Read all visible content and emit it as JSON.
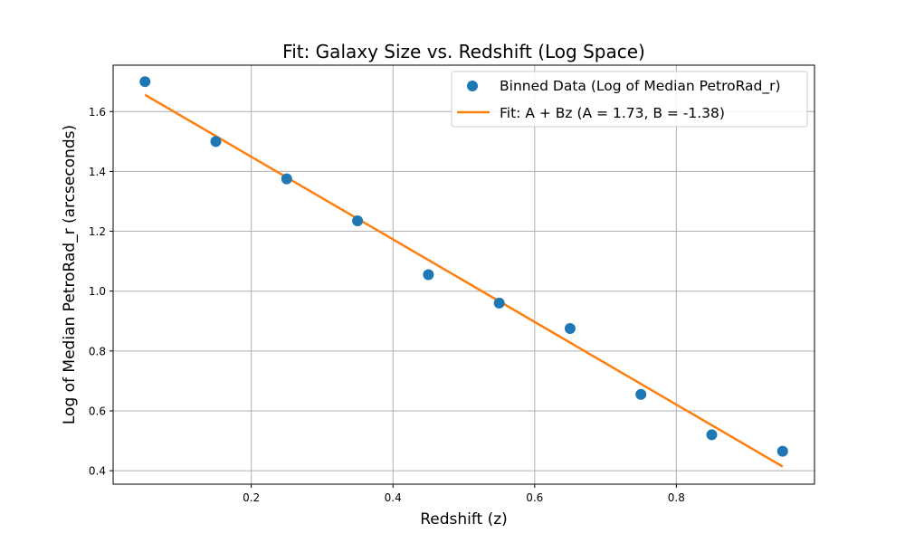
{
  "chart_data": {
    "type": "scatter",
    "title": "Fit: Galaxy Size vs. Redshift (Log Space)",
    "xlabel": "Redshift (z)",
    "ylabel": "Log of Median PetroRad_r (arcseconds)",
    "xlim": [
      0.005,
      0.995
    ],
    "ylim": [
      0.355,
      1.755
    ],
    "xticks": [
      0.2,
      0.4,
      0.6,
      0.8
    ],
    "xtick_labels": [
      "0.2",
      "0.4",
      "0.6",
      "0.8"
    ],
    "yticks": [
      0.4,
      0.6,
      0.8,
      1.0,
      1.2,
      1.4,
      1.6
    ],
    "ytick_labels": [
      "0.4",
      "0.6",
      "0.8",
      "1.0",
      "1.2",
      "1.4",
      "1.6"
    ],
    "grid": true,
    "legend_position": "top-right",
    "series": [
      {
        "name": "Binned Data (Log of Median PetroRad_r)",
        "kind": "scatter",
        "color": "#1f77b4",
        "x": [
          0.05,
          0.15,
          0.25,
          0.35,
          0.45,
          0.55,
          0.65,
          0.75,
          0.85,
          0.95
        ],
        "y": [
          1.7,
          1.5,
          1.375,
          1.235,
          1.055,
          0.96,
          0.875,
          0.655,
          0.52,
          0.465
        ]
      },
      {
        "name": "Fit: A + Bz (A = 1.73, B = -1.38)",
        "kind": "line",
        "color": "#ff7f0e",
        "x": [
          0.05,
          0.95
        ],
        "y": [
          1.656,
          0.414
        ]
      }
    ]
  }
}
